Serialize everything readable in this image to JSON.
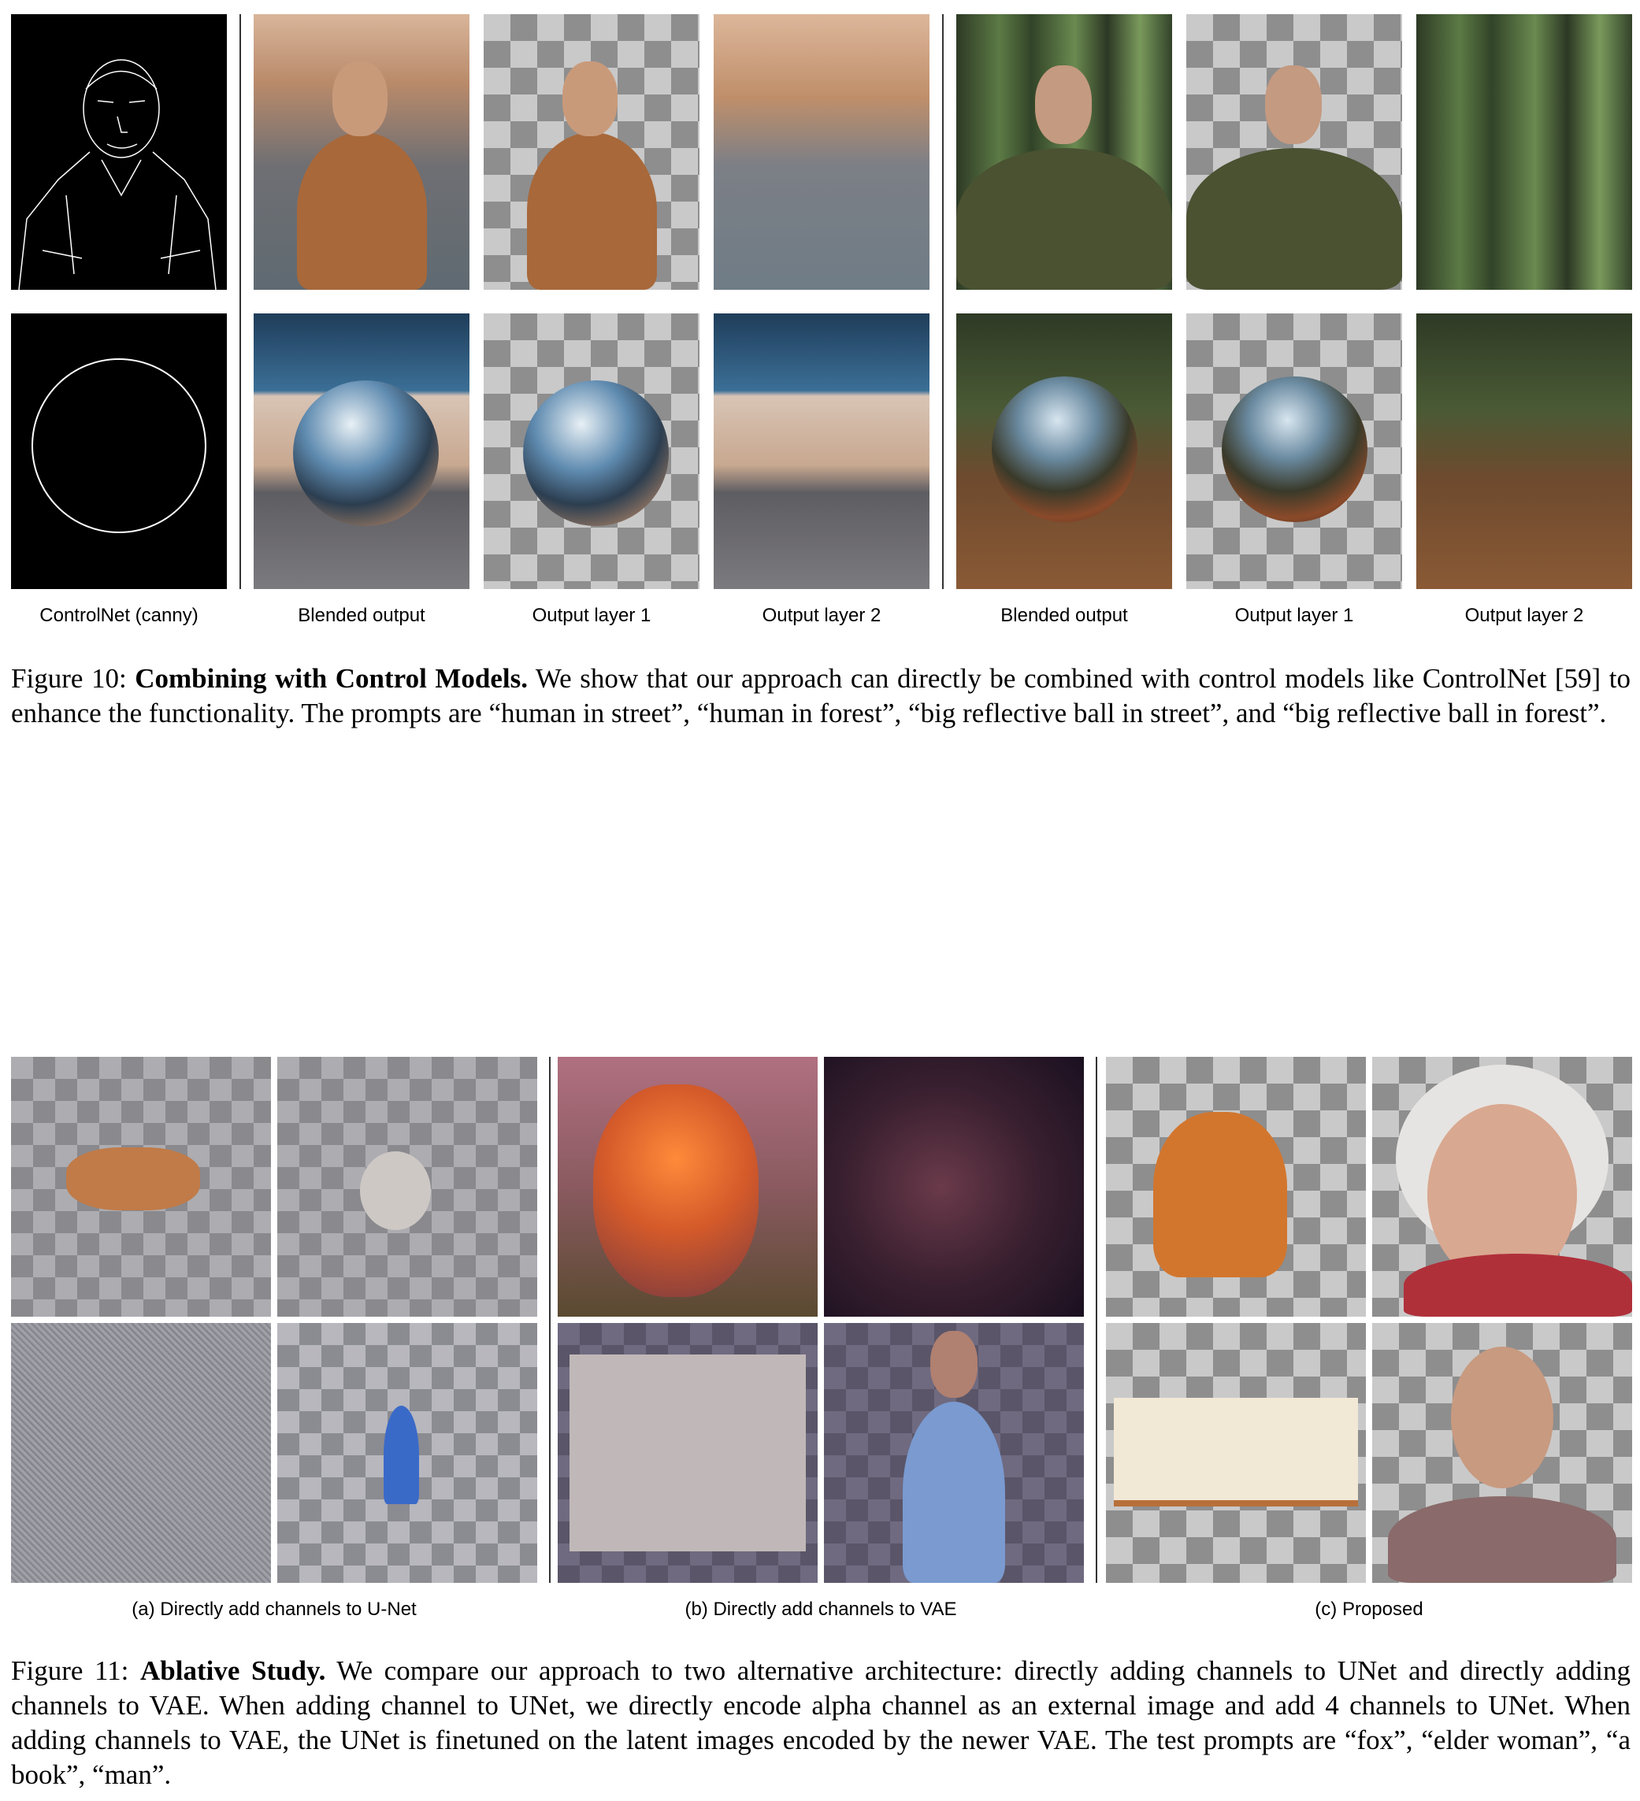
{
  "figure10": {
    "labels": {
      "controlnet": "ControlNet (canny)",
      "blended_1": "Blended output",
      "layer1_1": "Output layer 1",
      "layer2_1": "Output layer 2",
      "blended_2": "Blended output",
      "layer1_2": "Output layer 1",
      "layer2_2": "Output layer 2"
    },
    "caption": {
      "prefix": "Figure 10: ",
      "title": "Combining with Control Models.",
      "body": " We show that our approach can directly be combined with control models like ControlNet [59] to enhance the functionality. The prompts are “human in street”, “human in forest”, “big reflective ball in street”, and “big reflective ball in forest”."
    }
  },
  "figure11": {
    "labels": {
      "a": "(a) Directly add channels to U-Net",
      "b": "(b) Directly add channels to VAE",
      "c": "(c) Proposed"
    },
    "caption": {
      "prefix": "Figure 11: ",
      "title": "Ablative Study.",
      "body": " We compare our approach to two alternative architecture: directly adding channels to UNet and directly adding channels to VAE. When adding channel to UNet, we directly encode alpha channel as an external image and add 4 channels to UNet. When adding channels to VAE, the UNet is finetuned on the latent images encoded by the newer VAE. The test prompts are “fox”, “elder woman”, “a book”, “man”."
    }
  }
}
